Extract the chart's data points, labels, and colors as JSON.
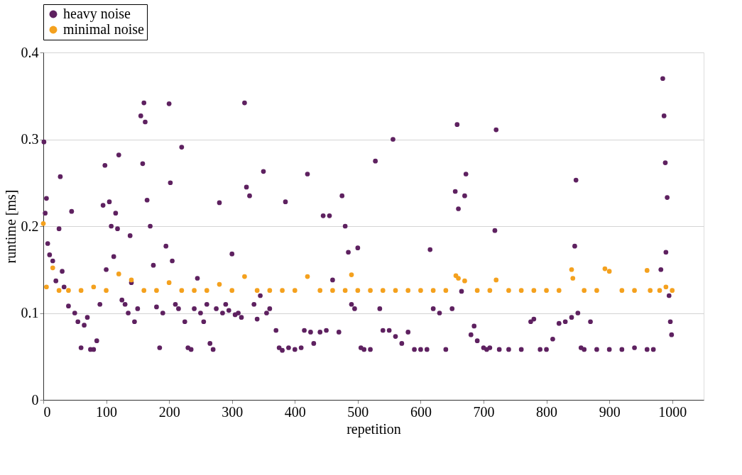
{
  "chart_data": {
    "type": "scatter",
    "xlabel": "repetition",
    "ylabel": "runtime [ms]",
    "xlim": [
      0,
      1050
    ],
    "ylim": [
      0,
      0.4
    ],
    "xticks": [
      0,
      100,
      200,
      300,
      400,
      500,
      600,
      700,
      800,
      900,
      1000
    ],
    "yticks": [
      0,
      0.1,
      0.2,
      0.3,
      0.4
    ],
    "grid": "y",
    "legend": "top",
    "marker": "circle",
    "series": [
      {
        "name": "heavy noise",
        "color": "#5e2160",
        "x": [
          1,
          3,
          5,
          7,
          10,
          15,
          20,
          25,
          27,
          30,
          33,
          40,
          45,
          50,
          55,
          60,
          65,
          70,
          75,
          80,
          85,
          90,
          95,
          98,
          100,
          105,
          108,
          112,
          115,
          118,
          120,
          125,
          130,
          135,
          138,
          140,
          145,
          150,
          155,
          158,
          160,
          162,
          165,
          170,
          175,
          180,
          185,
          190,
          195,
          200,
          202,
          205,
          210,
          215,
          220,
          225,
          230,
          235,
          240,
          245,
          250,
          255,
          260,
          265,
          270,
          275,
          280,
          285,
          290,
          295,
          300,
          305,
          310,
          315,
          320,
          323,
          328,
          335,
          340,
          345,
          350,
          355,
          360,
          370,
          375,
          380,
          385,
          390,
          400,
          410,
          415,
          420,
          425,
          430,
          440,
          445,
          450,
          455,
          460,
          470,
          475,
          480,
          485,
          490,
          495,
          500,
          505,
          510,
          520,
          528,
          535,
          540,
          550,
          556,
          560,
          570,
          580,
          590,
          600,
          610,
          615,
          620,
          630,
          640,
          650,
          655,
          658,
          660,
          665,
          670,
          672,
          680,
          685,
          690,
          700,
          705,
          710,
          718,
          720,
          725,
          740,
          760,
          775,
          780,
          790,
          800,
          810,
          820,
          830,
          840,
          845,
          847,
          850,
          855,
          860,
          870,
          880,
          900,
          920,
          940,
          960,
          970,
          982,
          985,
          987,
          989,
          990,
          992,
          995,
          997,
          999
        ],
        "values": [
          0.297,
          0.215,
          0.232,
          0.18,
          0.167,
          0.16,
          0.137,
          0.197,
          0.257,
          0.148,
          0.13,
          0.108,
          0.217,
          0.1,
          0.09,
          0.06,
          0.086,
          0.095,
          0.058,
          0.058,
          0.068,
          0.11,
          0.224,
          0.27,
          0.15,
          0.228,
          0.2,
          0.165,
          0.215,
          0.197,
          0.282,
          0.115,
          0.11,
          0.1,
          0.189,
          0.135,
          0.09,
          0.105,
          0.327,
          0.272,
          0.342,
          0.32,
          0.23,
          0.2,
          0.155,
          0.107,
          0.06,
          0.1,
          0.177,
          0.341,
          0.25,
          0.16,
          0.11,
          0.105,
          0.291,
          0.09,
          0.06,
          0.058,
          0.105,
          0.14,
          0.1,
          0.09,
          0.11,
          0.065,
          0.058,
          0.105,
          0.227,
          0.1,
          0.11,
          0.103,
          0.168,
          0.098,
          0.1,
          0.095,
          0.342,
          0.245,
          0.235,
          0.11,
          0.093,
          0.12,
          0.263,
          0.1,
          0.105,
          0.08,
          0.06,
          0.057,
          0.228,
          0.06,
          0.058,
          0.06,
          0.08,
          0.26,
          0.078,
          0.065,
          0.078,
          0.212,
          0.08,
          0.212,
          0.138,
          0.078,
          0.235,
          0.2,
          0.17,
          0.11,
          0.105,
          0.175,
          0.06,
          0.058,
          0.058,
          0.275,
          0.105,
          0.08,
          0.08,
          0.3,
          0.073,
          0.065,
          0.078,
          0.058,
          0.058,
          0.058,
          0.173,
          0.105,
          0.1,
          0.058,
          0.105,
          0.24,
          0.317,
          0.22,
          0.125,
          0.235,
          0.26,
          0.075,
          0.085,
          0.068,
          0.06,
          0.058,
          0.06,
          0.195,
          0.311,
          0.058,
          0.058,
          0.058,
          0.09,
          0.093,
          0.058,
          0.058,
          0.07,
          0.088,
          0.09,
          0.095,
          0.177,
          0.253,
          0.1,
          0.06,
          0.058,
          0.09,
          0.058,
          0.058,
          0.058,
          0.06,
          0.058,
          0.058,
          0.15,
          0.37,
          0.327,
          0.273,
          0.17,
          0.233,
          0.12,
          0.09,
          0.075
        ]
      },
      {
        "name": "minimal noise",
        "color": "#f4a11e",
        "x": [
          0,
          5,
          15,
          25,
          40,
          60,
          80,
          100,
          120,
          140,
          160,
          180,
          200,
          220,
          240,
          260,
          280,
          300,
          320,
          340,
          360,
          380,
          400,
          420,
          440,
          460,
          480,
          490,
          500,
          520,
          540,
          560,
          580,
          600,
          620,
          640,
          656,
          660,
          670,
          690,
          710,
          720,
          740,
          760,
          780,
          800,
          820,
          840,
          842,
          860,
          880,
          893,
          900,
          920,
          940,
          960,
          965,
          980,
          990,
          1000
        ],
        "values": [
          0.203,
          0.13,
          0.152,
          0.126,
          0.126,
          0.126,
          0.13,
          0.126,
          0.145,
          0.138,
          0.126,
          0.126,
          0.135,
          0.126,
          0.126,
          0.126,
          0.133,
          0.126,
          0.142,
          0.126,
          0.126,
          0.126,
          0.126,
          0.142,
          0.126,
          0.126,
          0.126,
          0.144,
          0.126,
          0.126,
          0.126,
          0.126,
          0.126,
          0.126,
          0.126,
          0.126,
          0.143,
          0.14,
          0.137,
          0.126,
          0.126,
          0.138,
          0.126,
          0.126,
          0.126,
          0.126,
          0.126,
          0.15,
          0.14,
          0.126,
          0.126,
          0.151,
          0.148,
          0.126,
          0.126,
          0.149,
          0.126,
          0.126,
          0.13,
          0.126
        ]
      }
    ]
  }
}
